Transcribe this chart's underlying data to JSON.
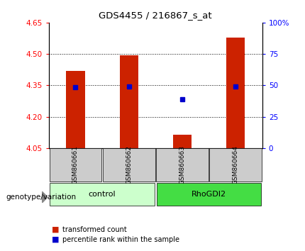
{
  "title": "GDS4455 / 216867_s_at",
  "samples": [
    "GSM860661",
    "GSM860662",
    "GSM860663",
    "GSM860664"
  ],
  "groups": [
    "control",
    "control",
    "RhoGDI2",
    "RhoGDI2"
  ],
  "bar_values": [
    4.42,
    4.495,
    4.115,
    4.58
  ],
  "bar_bottom": 4.05,
  "percentile_values": [
    4.34,
    4.345,
    4.285,
    4.345
  ],
  "bar_color": "#cc2200",
  "percentile_color": "#0000cc",
  "ylim_left": [
    4.05,
    4.65
  ],
  "ylim_right": [
    0,
    100
  ],
  "yticks_left": [
    4.05,
    4.2,
    4.35,
    4.5,
    4.65
  ],
  "yticks_right": [
    0,
    25,
    50,
    75,
    100
  ],
  "ytick_labels_right": [
    "0",
    "25",
    "50",
    "75",
    "100%"
  ],
  "hlines": [
    4.2,
    4.35,
    4.5
  ],
  "group_colors": {
    "control": "#ccffcc",
    "RhoGDI2": "#44dd44"
  },
  "group_label": "genotype/variation",
  "legend_items": [
    {
      "label": "transformed count",
      "color": "#cc2200"
    },
    {
      "label": "percentile rank within the sample",
      "color": "#0000cc"
    }
  ],
  "sample_area_bg": "#cccccc",
  "bar_width": 0.35
}
